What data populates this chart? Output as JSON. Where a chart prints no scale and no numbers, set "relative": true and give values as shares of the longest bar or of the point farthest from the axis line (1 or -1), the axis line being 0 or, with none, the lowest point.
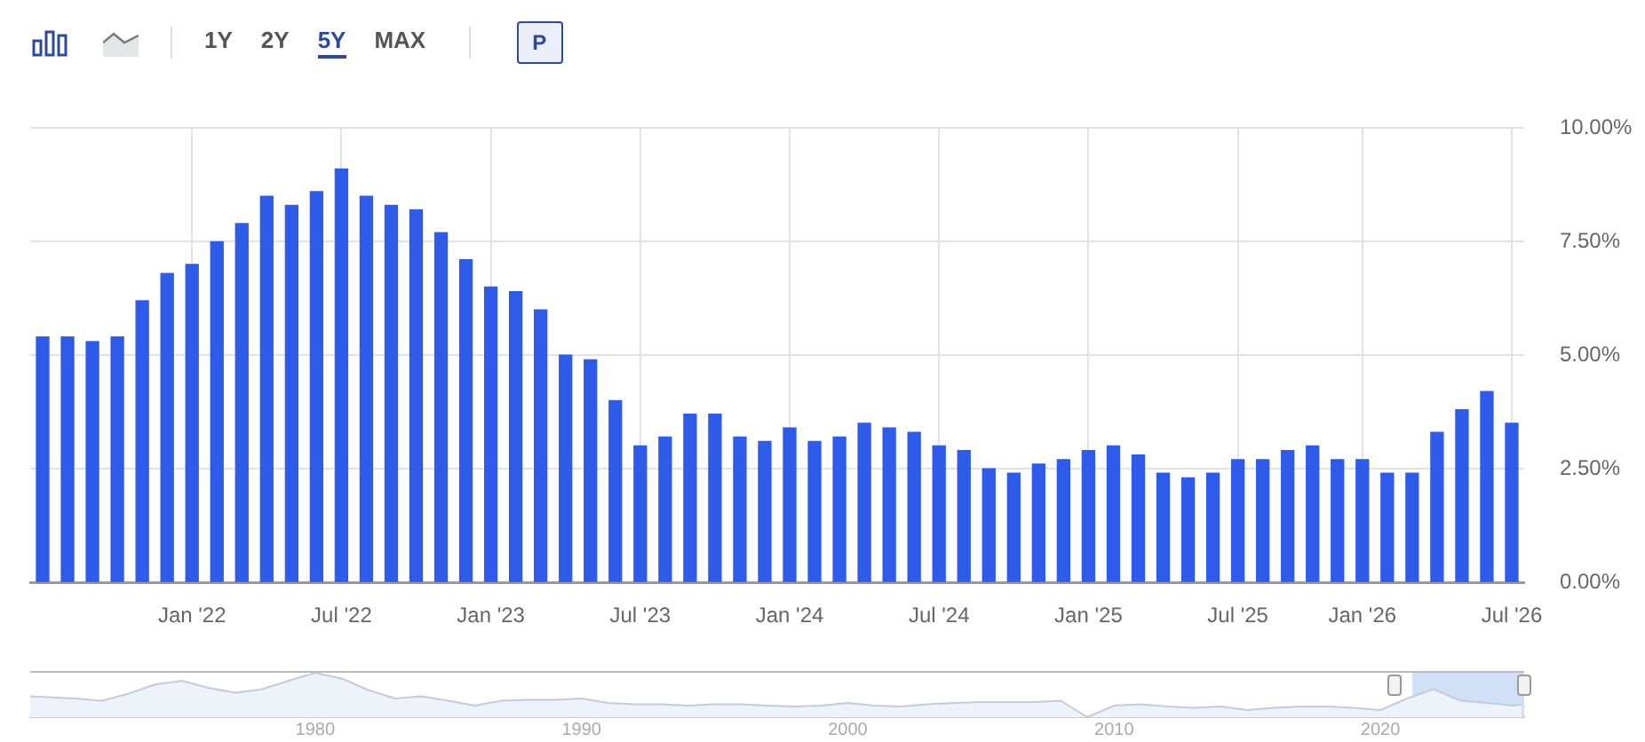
{
  "chart_data": [
    {
      "type": "bar",
      "annotations": [
        "1Y",
        "2Y",
        "5Y",
        "MAX",
        "P"
      ],
      "categories": [
        null,
        null,
        null,
        null,
        null,
        null,
        "Jan '22",
        null,
        null,
        null,
        null,
        null,
        "Jul '22",
        null,
        null,
        null,
        null,
        null,
        "Jan '23",
        null,
        null,
        null,
        null,
        null,
        "Jul '23",
        null,
        null,
        null,
        null,
        null,
        "Jan '24",
        null,
        null,
        null,
        null,
        null,
        "Jul '24",
        null,
        null,
        null,
        null,
        null,
        "Jan '25",
        null,
        null,
        null,
        null,
        null,
        "Jul '25",
        null,
        null,
        null,
        null,
        "Jan '26",
        null,
        null,
        null,
        null,
        null,
        "Jul '26"
      ],
      "values": [
        5.4,
        5.4,
        5.3,
        5.4,
        6.2,
        6.8,
        7.0,
        7.5,
        7.9,
        8.5,
        8.3,
        8.6,
        9.1,
        8.5,
        8.3,
        8.2,
        7.7,
        7.1,
        6.5,
        6.4,
        6.0,
        5.0,
        4.9,
        4.0,
        3.0,
        3.2,
        3.7,
        3.7,
        3.2,
        3.1,
        3.4,
        3.1,
        3.2,
        3.5,
        3.4,
        3.3,
        3.0,
        2.9,
        2.5,
        2.4,
        2.6,
        2.7,
        2.9,
        3.0,
        2.8,
        2.4,
        2.3,
        2.4,
        2.7,
        2.7,
        2.9,
        3.0,
        2.7,
        2.7,
        2.4,
        2.4,
        3.3,
        3.8,
        4.2,
        3.5
      ],
      "color": "#2f5bea",
      "ylim": [
        0,
        10
      ],
      "yticks": [
        {
          "value": 0,
          "label": "0.00%"
        },
        {
          "value": 2.5,
          "label": "2.50%"
        },
        {
          "value": 5,
          "label": "5.00%"
        },
        {
          "value": 7.5,
          "label": "7.50%"
        },
        {
          "value": 10,
          "label": "10.00%"
        }
      ],
      "grid": true
    },
    {
      "type": "area",
      "relative": true,
      "color": "#c3ccd8",
      "x": [
        1969.3,
        1971,
        1972,
        1973,
        1974,
        1975,
        1976,
        1977,
        1978,
        1979,
        1980,
        1981,
        1982,
        1983,
        1984,
        1985,
        1986,
        1987,
        1988,
        1989,
        1990,
        1991,
        1992,
        1993,
        1994,
        1995,
        1996,
        1997,
        1998,
        1999,
        2000,
        2001,
        2002,
        2003,
        2004,
        2005,
        2006,
        2007,
        2008,
        2009,
        2010,
        2011,
        2012,
        2013,
        2014,
        2015,
        2016,
        2017,
        2018,
        2019,
        2020,
        2021,
        2022,
        2023,
        2024,
        2025,
        2025.3
      ],
      "values": [
        0.47,
        0.42,
        0.37,
        0.53,
        0.74,
        0.82,
        0.66,
        0.55,
        0.63,
        0.82,
        1,
        0.87,
        0.61,
        0.42,
        0.47,
        0.37,
        0.26,
        0.37,
        0.39,
        0.39,
        0.42,
        0.32,
        0.29,
        0.29,
        0.26,
        0.29,
        0.29,
        0.26,
        0.24,
        0.26,
        0.32,
        0.26,
        0.24,
        0.29,
        0.32,
        0.34,
        0.34,
        0.34,
        0.37,
        0,
        0.26,
        0.29,
        0.24,
        0.21,
        0.24,
        0.16,
        0.21,
        0.24,
        0.24,
        0.21,
        0.16,
        0.42,
        0.63,
        0.37,
        0.32,
        0.26,
        0.29
      ],
      "xlim": [
        1969.3,
        2025.4
      ],
      "xticks": [
        1980,
        1990,
        2000,
        2010,
        2020
      ],
      "bands": [
        {
          "axis": "x",
          "from": 2021.2,
          "to": 2025.4,
          "color": "#cfe0f7"
        }
      ]
    }
  ]
}
